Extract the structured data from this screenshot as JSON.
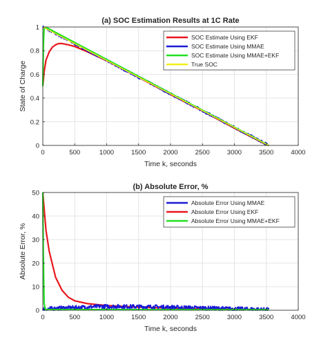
{
  "chart_data": [
    {
      "type": "line",
      "title": "(a) SOC Estimation Results at 1C Rate",
      "xlabel": "Time k, seconds",
      "ylabel": "State of Charge",
      "xlim": [
        0,
        4000
      ],
      "ylim": [
        0,
        1
      ],
      "xticks": [
        "0",
        "500",
        "1000",
        "1500",
        "2000",
        "2500",
        "3000",
        "3500",
        "4000"
      ],
      "yticks": [
        "0",
        "0.2",
        "0.4",
        "0.6",
        "0.8",
        "1"
      ],
      "grid": true,
      "legend_position": "top-right",
      "series": [
        {
          "name": "SOC Estimate Using EKF",
          "color": "#e8161b",
          "x": [
            0,
            20,
            50,
            100,
            150,
            200,
            250,
            300,
            400,
            500,
            700,
            1000,
            1500,
            2000,
            2500,
            3000,
            3500,
            3540
          ],
          "y": [
            0.5,
            0.62,
            0.72,
            0.79,
            0.83,
            0.85,
            0.86,
            0.86,
            0.85,
            0.835,
            0.79,
            0.715,
            0.575,
            0.43,
            0.29,
            0.145,
            0.005,
            0.0
          ]
        },
        {
          "name": "SOC Estimate Using MMAE",
          "color": "#1a1ad6",
          "x": [
            0,
            3540
          ],
          "y": [
            1.0,
            0.0
          ],
          "noise": 0.012
        },
        {
          "name": "SOC Estimate Using MMAE+EKF",
          "color": "#21e021",
          "x": [
            0,
            10,
            20,
            60,
            3540
          ],
          "y": [
            0.5,
            0.85,
            0.99,
            0.995,
            0.0
          ]
        },
        {
          "name": "True SOC",
          "color": "#f2ef1b",
          "x": [
            0,
            3540
          ],
          "y": [
            1.0,
            0.0
          ]
        }
      ]
    },
    {
      "type": "line",
      "title": "(b) Absolute Error, %",
      "xlabel": "Time k, seconds",
      "ylabel": "Absolute Error, %",
      "xlim": [
        0,
        4000
      ],
      "ylim": [
        0,
        50
      ],
      "xticks": [
        "0",
        "500",
        "1000",
        "1500",
        "2000",
        "2500",
        "3000",
        "3500",
        "4000"
      ],
      "yticks": [
        "0",
        "10",
        "20",
        "30",
        "40",
        "50"
      ],
      "grid": true,
      "legend_position": "top-right",
      "series": [
        {
          "name": "Absolute Error Using MMAE",
          "color": "#1a1ad6",
          "x": [
            0,
            300,
            600,
            900,
            1200,
            1500,
            1800,
            2100,
            2400,
            2700,
            3000,
            3300,
            3540
          ],
          "y": [
            0.5,
            0.9,
            1.2,
            1.6,
            1.6,
            1.5,
            1.4,
            1.2,
            1.0,
            0.8,
            0.6,
            0.4,
            0.2
          ],
          "noise": 0.9
        },
        {
          "name": "Absolute Error Using EKF",
          "color": "#e8161b",
          "x": [
            0,
            50,
            100,
            200,
            300,
            400,
            500,
            700,
            1000,
            1500,
            2000,
            2500,
            3000,
            3540
          ],
          "y": [
            50,
            34,
            25,
            14,
            8.5,
            5.5,
            4.0,
            2.8,
            2.0,
            1.3,
            0.9,
            0.6,
            0.4,
            0.2
          ]
        },
        {
          "name": "Absolute Error Using MMAE+EKF",
          "color": "#21e021",
          "x": [
            0,
            8,
            20,
            40,
            3540
          ],
          "y": [
            50,
            25,
            3,
            0.3,
            0.2
          ]
        }
      ]
    }
  ]
}
